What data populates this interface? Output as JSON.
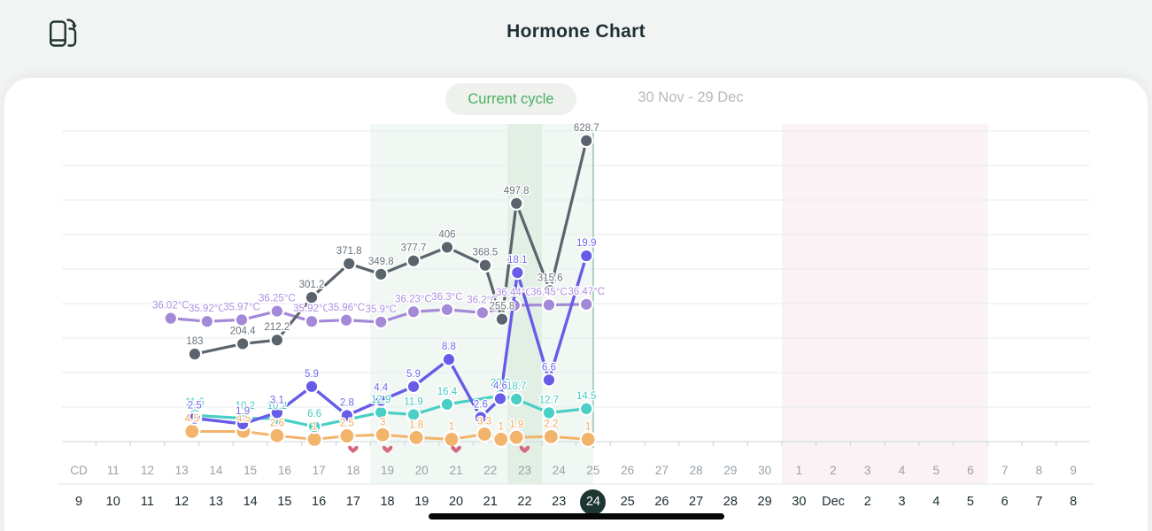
{
  "header": {
    "title": "Hormone Chart",
    "icon": "rotate-phone-icon"
  },
  "tabs": {
    "current_cycle_label": "Current cycle",
    "date_range_label": "30 Nov - 29 Dec"
  },
  "selected_date": "24",
  "chart_data": {
    "type": "line",
    "x_axis": {
      "header_label": "CD",
      "cd_row": [
        "CD",
        "11",
        "12",
        "13",
        "14",
        "15",
        "16",
        "17",
        "18",
        "19",
        "20",
        "21",
        "22",
        "23",
        "24",
        "25",
        "26",
        "27",
        "28",
        "29",
        "30",
        "1",
        "2",
        "3",
        "4",
        "5",
        "6",
        "7",
        "8",
        "9"
      ],
      "date_row": [
        "9",
        "10",
        "11",
        "12",
        "13",
        "14",
        "15",
        "16",
        "17",
        "18",
        "19",
        "20",
        "21",
        "22",
        "23",
        "24",
        "25",
        "26",
        "27",
        "28",
        "29",
        "30",
        "Dec",
        "2",
        "3",
        "4",
        "5",
        "6",
        "7",
        "8"
      ],
      "selected_date_index": 15
    },
    "annotations": {
      "fertile_band_cd": [
        18.5,
        25.0
      ],
      "peak_band_cd": [
        22.5,
        23.5
      ],
      "today_line_cd": 25.0,
      "predicted_period_band_cd": [
        30.5,
        36.5
      ],
      "heart_marker_cds": [
        18,
        19,
        21,
        23
      ],
      "band_colors": {
        "fertile": "#f1f7f2",
        "peak": "#e2efe4",
        "period_prediction": "#faf2f4",
        "today_line": "#abd2ba"
      },
      "heart_color": "#d5697f"
    },
    "series": [
      {
        "id": "orange",
        "color": "#f2b36b",
        "label_color": "#eeab5e",
        "points": [
          {
            "cd": 13.3,
            "value": 4.5,
            "label": "4.5"
          },
          {
            "cd": 14.8,
            "value": 4.5,
            "label": "4.5"
          },
          {
            "cd": 15.78,
            "value": 2.6,
            "label": "2.6"
          },
          {
            "cd": 16.87,
            "value": 1,
            "label": "1"
          },
          {
            "cd": 17.82,
            "value": 2.5,
            "label": "2.5"
          },
          {
            "cd": 18.86,
            "value": 3,
            "label": "3"
          },
          {
            "cd": 19.84,
            "value": 1.8,
            "label": "1.8"
          },
          {
            "cd": 20.87,
            "value": 1,
            "label": "1"
          },
          {
            "cd": 21.83,
            "value": 3.3,
            "label": "3.3"
          },
          {
            "cd": 22.31,
            "value": 1,
            "label": "1"
          },
          {
            "cd": 22.76,
            "value": 1.9,
            "label": "1.9"
          },
          {
            "cd": 23.77,
            "value": 2.2,
            "label": "2.2"
          },
          {
            "cd": 24.85,
            "value": 1,
            "label": "1"
          }
        ]
      },
      {
        "id": "teal",
        "color": "#49cfc5",
        "label_color": "#46c9c0",
        "points": [
          {
            "cd": 13.38,
            "value": 11.6,
            "label": "11.6"
          },
          {
            "cd": 14.85,
            "value": 10.2,
            "label": "10.2"
          },
          {
            "cd": 15.78,
            "value": 10.2,
            "label": "10.2"
          },
          {
            "cd": 16.87,
            "value": 6.6,
            "label": "6.6"
          },
          {
            "cd": 18.81,
            "value": 12.9,
            "label": "12.9"
          },
          {
            "cd": 19.76,
            "value": 11.9,
            "label": "11.9"
          },
          {
            "cd": 20.74,
            "value": 16.4,
            "label": "16.4"
          },
          {
            "cd": 22.29,
            "value": 20.2,
            "label": "20.2"
          },
          {
            "cd": 22.76,
            "value": 18.7,
            "label": "18.7"
          },
          {
            "cd": 23.71,
            "value": 12.7,
            "label": "12.7"
          },
          {
            "cd": 24.8,
            "value": 14.5,
            "label": "14.5"
          }
        ]
      },
      {
        "id": "temperature",
        "unit": "°C",
        "color": "#a489d6",
        "label_color": "#ad90e0",
        "points": [
          {
            "cd": 12.68,
            "value": 36.02,
            "label": "36.02°C"
          },
          {
            "cd": 13.74,
            "value": 35.92,
            "label": "35.92°C"
          },
          {
            "cd": 14.75,
            "value": 35.97,
            "label": "35.97°C"
          },
          {
            "cd": 15.78,
            "value": 36.25,
            "label": "36.25°C"
          },
          {
            "cd": 16.79,
            "value": 35.92,
            "label": "35.92°C"
          },
          {
            "cd": 17.8,
            "value": 35.96,
            "label": "35.96°C"
          },
          {
            "cd": 18.81,
            "value": 35.9,
            "label": "35.9°C"
          },
          {
            "cd": 19.76,
            "value": 36.23,
            "label": "36.23°C"
          },
          {
            "cd": 20.74,
            "value": 36.3,
            "label": "36.3°C"
          },
          {
            "cd": 21.77,
            "value": 36.2,
            "label": "36.2°C"
          },
          {
            "cd": 22.7,
            "value": 36.44,
            "label": "36.44°C"
          },
          {
            "cd": 23.71,
            "value": 36.45,
            "label": "36.45°C"
          },
          {
            "cd": 24.8,
            "value": 36.47,
            "label": "36.47°C"
          }
        ]
      },
      {
        "id": "gray",
        "color": "#5b646d",
        "label_color": "#6a737c",
        "points": [
          {
            "cd": 13.38,
            "value": 183,
            "label": "183"
          },
          {
            "cd": 14.78,
            "value": 204.4,
            "label": "204.4"
          },
          {
            "cd": 15.78,
            "value": 212.2,
            "label": "212.2"
          },
          {
            "cd": 16.79,
            "value": 301.2,
            "label": "301.2"
          },
          {
            "cd": 17.88,
            "value": 371.8,
            "label": "371.8"
          },
          {
            "cd": 18.81,
            "value": 349.8,
            "label": "349.8"
          },
          {
            "cd": 19.76,
            "value": 377.7,
            "label": "377.7"
          },
          {
            "cd": 20.74,
            "value": 406,
            "label": "406"
          },
          {
            "cd": 21.85,
            "value": 368.5,
            "label": "368.5"
          },
          {
            "cd": 22.34,
            "value": 255.8,
            "label": "255.8"
          },
          {
            "cd": 22.76,
            "value": 497.8,
            "label": "497.8"
          },
          {
            "cd": 23.74,
            "value": 315.6,
            "label": "315.6"
          },
          {
            "cd": 24.8,
            "value": 628.7,
            "label": "628.7"
          }
        ]
      },
      {
        "id": "indigo",
        "color": "#675ce8",
        "label_color": "#7268ef",
        "points": [
          {
            "cd": 13.38,
            "value": 2.5,
            "label": "2.5"
          },
          {
            "cd": 14.78,
            "value": 1.9,
            "label": "1.9"
          },
          {
            "cd": 15.78,
            "value": 3.1,
            "label": "3.1"
          },
          {
            "cd": 16.79,
            "value": 5.9,
            "label": "5.9"
          },
          {
            "cd": 17.82,
            "value": 2.8,
            "label": "2.8"
          },
          {
            "cd": 18.81,
            "value": 4.4,
            "label": "4.4"
          },
          {
            "cd": 19.76,
            "value": 5.9,
            "label": "5.9"
          },
          {
            "cd": 20.79,
            "value": 8.8,
            "label": "8.8"
          },
          {
            "cd": 21.72,
            "value": 2.6,
            "label": "2.6"
          },
          {
            "cd": 22.29,
            "value": 4.6,
            "label": "4.6"
          },
          {
            "cd": 22.79,
            "value": 18.1,
            "label": "18.1"
          },
          {
            "cd": 23.71,
            "value": 6.6,
            "label": "6.6"
          },
          {
            "cd": 24.8,
            "value": 19.9,
            "label": "19.9"
          }
        ]
      }
    ]
  }
}
